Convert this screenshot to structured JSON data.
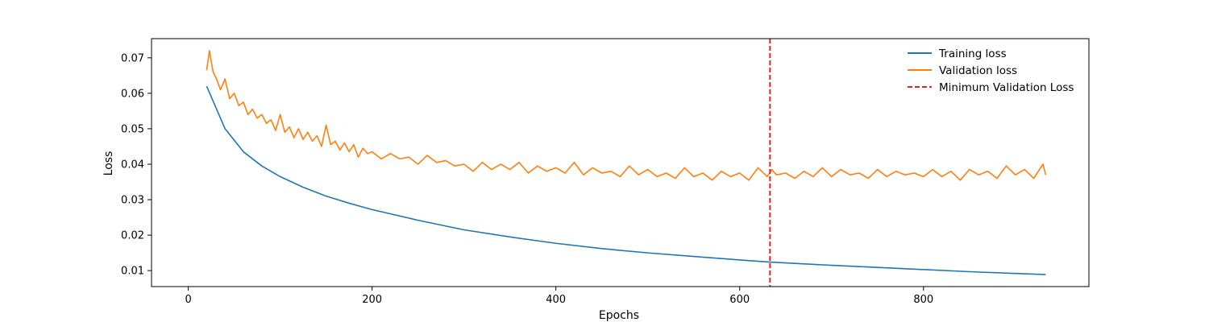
{
  "chart_data": {
    "type": "line",
    "title": "",
    "xlabel": "Epochs",
    "ylabel": "Loss",
    "xlim": [
      -40,
      980
    ],
    "ylim": [
      0.0055,
      0.0754
    ],
    "xticks": [
      0,
      200,
      400,
      600,
      800
    ],
    "yticks": [
      0.01,
      0.02,
      0.03,
      0.04,
      0.05,
      0.06,
      0.07
    ],
    "xtick_labels": [
      "0",
      "200",
      "400",
      "600",
      "800"
    ],
    "ytick_labels": [
      "0.01",
      "0.02",
      "0.03",
      "0.04",
      "0.05",
      "0.06",
      "0.07"
    ],
    "grid": false,
    "legend_position": "top-right",
    "series": [
      {
        "name": "Training loss",
        "color": "#1f77b4",
        "style": "solid",
        "x": [
          20,
          40,
          60,
          80,
          100,
          125,
          150,
          175,
          200,
          250,
          300,
          350,
          400,
          450,
          500,
          550,
          600,
          633,
          700,
          750,
          800,
          850,
          900,
          933
        ],
        "y": [
          0.062,
          0.05,
          0.0435,
          0.0395,
          0.0365,
          0.0335,
          0.031,
          0.029,
          0.0272,
          0.0242,
          0.0215,
          0.0195,
          0.0177,
          0.0162,
          0.015,
          0.014,
          0.013,
          0.0124,
          0.0115,
          0.0109,
          0.0103,
          0.0097,
          0.0092,
          0.0089
        ]
      },
      {
        "name": "Validation loss",
        "color": "#ff7f0e",
        "style": "solid",
        "x": [
          20,
          23,
          27,
          30,
          35,
          40,
          45,
          50,
          55,
          60,
          65,
          70,
          75,
          80,
          85,
          90,
          95,
          100,
          105,
          110,
          115,
          120,
          125,
          130,
          135,
          140,
          145,
          150,
          155,
          160,
          165,
          170,
          175,
          180,
          185,
          190,
          195,
          200,
          210,
          220,
          230,
          240,
          250,
          260,
          270,
          280,
          290,
          300,
          310,
          320,
          330,
          340,
          350,
          360,
          370,
          380,
          390,
          400,
          410,
          420,
          430,
          440,
          450,
          460,
          470,
          480,
          490,
          500,
          510,
          520,
          530,
          540,
          550,
          560,
          570,
          580,
          590,
          600,
          610,
          620,
          630,
          635,
          640,
          650,
          660,
          670,
          680,
          690,
          700,
          710,
          720,
          730,
          740,
          750,
          760,
          770,
          780,
          790,
          800,
          810,
          820,
          830,
          840,
          850,
          860,
          870,
          880,
          890,
          900,
          910,
          920,
          930,
          933
        ],
        "y": [
          0.0665,
          0.072,
          0.066,
          0.0645,
          0.061,
          0.064,
          0.0585,
          0.06,
          0.0565,
          0.0575,
          0.054,
          0.0555,
          0.053,
          0.054,
          0.0515,
          0.0525,
          0.0495,
          0.054,
          0.049,
          0.0505,
          0.0475,
          0.05,
          0.047,
          0.049,
          0.0465,
          0.048,
          0.045,
          0.051,
          0.0455,
          0.0465,
          0.044,
          0.046,
          0.0435,
          0.0455,
          0.042,
          0.0445,
          0.043,
          0.0435,
          0.0415,
          0.043,
          0.0415,
          0.042,
          0.04,
          0.0425,
          0.0405,
          0.041,
          0.0395,
          0.04,
          0.038,
          0.0405,
          0.0385,
          0.04,
          0.0385,
          0.0405,
          0.0375,
          0.0395,
          0.038,
          0.039,
          0.0375,
          0.0405,
          0.037,
          0.039,
          0.0375,
          0.038,
          0.0365,
          0.0395,
          0.037,
          0.0385,
          0.0365,
          0.0375,
          0.036,
          0.039,
          0.0365,
          0.0375,
          0.0355,
          0.038,
          0.0365,
          0.0375,
          0.0355,
          0.039,
          0.0365,
          0.0385,
          0.037,
          0.0375,
          0.036,
          0.038,
          0.0365,
          0.039,
          0.0365,
          0.0385,
          0.037,
          0.0375,
          0.036,
          0.0385,
          0.0365,
          0.038,
          0.037,
          0.0375,
          0.0365,
          0.0385,
          0.0365,
          0.038,
          0.0355,
          0.0385,
          0.037,
          0.038,
          0.036,
          0.0395,
          0.037,
          0.0385,
          0.036,
          0.04,
          0.037
        ]
      }
    ],
    "vertical_line": {
      "name": "Minimum Validation Loss",
      "x": 633,
      "color": "#d62728",
      "style": "dashed"
    }
  }
}
